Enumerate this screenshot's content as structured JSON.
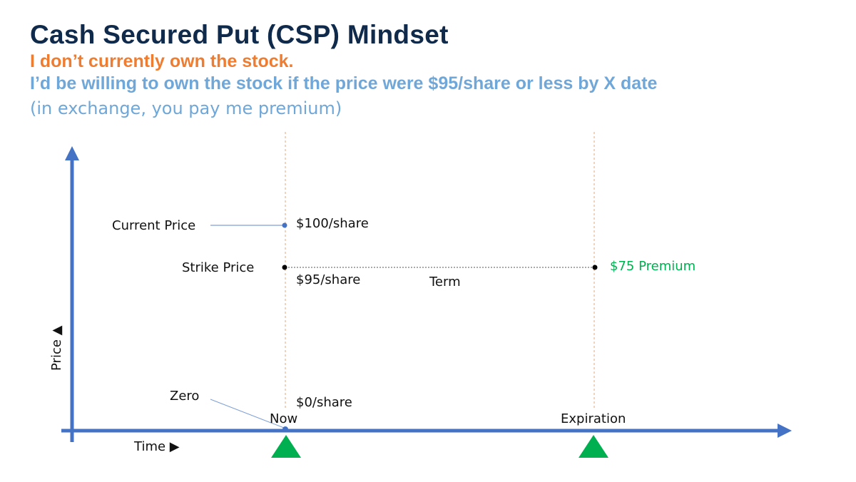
{
  "slide": {
    "title": "Cash Secured Put (CSP) Mindset",
    "subtitle_1": "I don’t currently own the stock.",
    "subtitle_2": "I’d be willing to own the stock if the price were $95/share or less by X date",
    "subtitle_3": "(in exchange, you pay me premium)"
  },
  "diagram": {
    "y_axis_label": "Price ▲",
    "x_axis_label": "Time ▶",
    "current_price_label": "Current Price",
    "current_price_value": "$100/share",
    "strike_price_label": "Strike Price",
    "strike_price_value": "$95/share",
    "term_label": "Term",
    "premium_label": "$75 Premium",
    "zero_label": "Zero",
    "zero_value": "$0/share",
    "now_label": "Now",
    "expiration_label": "Expiration",
    "colors": {
      "axis": "#4472c4",
      "marker": "#00b050",
      "premium": "#00b050",
      "guide": "#f4b183"
    }
  }
}
